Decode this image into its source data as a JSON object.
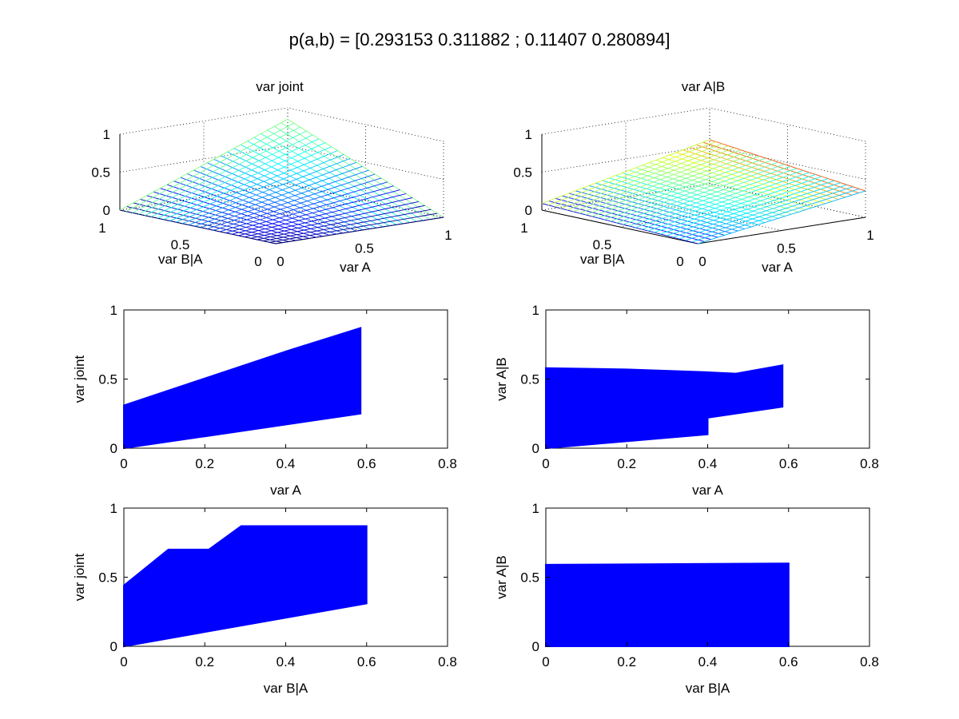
{
  "figure": {
    "title": "p(a,b) = [0.293153 0.311882 ; 0.11407 0.280894]",
    "background": "#ffffff"
  },
  "chart_data": [
    {
      "id": "surf-joint",
      "type": "surface",
      "title": "var joint",
      "xlabel": "var A",
      "ylabel": "var B|A",
      "xticks": [
        "0",
        "0.5",
        "1"
      ],
      "yticks": [
        "0",
        "0.5",
        "1"
      ],
      "zticks": [
        "0",
        "0.5",
        "1"
      ],
      "xlim": [
        0,
        1
      ],
      "ylim": [
        0,
        1
      ],
      "zlim": [
        0,
        1
      ],
      "surface": {
        "min": 0.0,
        "max": 0.85,
        "colormap": "jet",
        "grid": 25
      },
      "grid": true
    },
    {
      "id": "surf-ab",
      "type": "surface",
      "title": "var A|B",
      "xlabel": "var A",
      "ylabel": "var B|A",
      "xticks": [
        "0",
        "0.5",
        "1"
      ],
      "yticks": [
        "0",
        "0.5",
        "1"
      ],
      "zticks": [
        "0",
        "0.5",
        "1"
      ],
      "xlim": [
        0,
        1
      ],
      "ylim": [
        0,
        1
      ],
      "zlim": [
        0,
        1
      ],
      "surface": {
        "min": 0.0,
        "max": 0.58,
        "colormap": "jet",
        "grid": 25
      },
      "grid": true
    },
    {
      "id": "scatter-joint-vs-a",
      "type": "scatter",
      "title": "",
      "xlabel": "var A",
      "ylabel": "var joint",
      "xlim": [
        0,
        0.8
      ],
      "ylim": [
        0,
        1
      ],
      "xticks": [
        "0",
        "0.2",
        "0.4",
        "0.6",
        "0.8"
      ],
      "yticks": [
        "0",
        "0.5",
        "1"
      ],
      "color": "#0000ff",
      "region_upper": [
        [
          0,
          0.31
        ],
        [
          0.4,
          0.7
        ],
        [
          0.585,
          0.87
        ]
      ],
      "region_lower": [
        [
          0,
          0.0
        ],
        [
          0.585,
          0.25
        ]
      ]
    },
    {
      "id": "scatter-ab-vs-a",
      "type": "scatter",
      "title": "",
      "xlabel": "var A",
      "ylabel": "var A|B",
      "xlim": [
        0,
        0.8
      ],
      "ylim": [
        0,
        1
      ],
      "xticks": [
        "0",
        "0.2",
        "0.4",
        "0.6",
        "0.8"
      ],
      "yticks": [
        "0",
        "0.5",
        "1"
      ],
      "color": "#0000ff",
      "region_upper": [
        [
          0,
          0.58
        ],
        [
          0.2,
          0.57
        ],
        [
          0.4,
          0.55
        ],
        [
          0.47,
          0.54
        ],
        [
          0.585,
          0.6
        ]
      ],
      "region_lower": [
        [
          0,
          0.0
        ],
        [
          0.4,
          0.1
        ],
        [
          0.4,
          0.22
        ],
        [
          0.585,
          0.3
        ]
      ]
    },
    {
      "id": "scatter-joint-vs-ba",
      "type": "scatter",
      "title": "",
      "xlabel": "var B|A",
      "ylabel": "var joint",
      "xlim": [
        0,
        0.8
      ],
      "ylim": [
        0,
        1
      ],
      "xticks": [
        "0",
        "0.2",
        "0.4",
        "0.6",
        "0.8"
      ],
      "yticks": [
        "0",
        "0.5",
        "1"
      ],
      "color": "#0000ff",
      "region_upper": [
        [
          0,
          0.44
        ],
        [
          0.11,
          0.7
        ],
        [
          0.21,
          0.7
        ],
        [
          0.29,
          0.87
        ],
        [
          0.6,
          0.87
        ]
      ],
      "region_lower": [
        [
          0,
          0.0
        ],
        [
          0.6,
          0.31
        ]
      ]
    },
    {
      "id": "scatter-ab-vs-ba",
      "type": "scatter",
      "title": "",
      "xlabel": "var B|A",
      "ylabel": "var A|B",
      "xlim": [
        0,
        0.8
      ],
      "ylim": [
        0,
        1
      ],
      "xticks": [
        "0",
        "0.2",
        "0.4",
        "0.6",
        "0.8"
      ],
      "yticks": [
        "0",
        "0.5",
        "1"
      ],
      "color": "#0000ff",
      "region_upper": [
        [
          0,
          0.59
        ],
        [
          0.6,
          0.6
        ]
      ],
      "region_lower": [
        [
          0,
          0.0
        ],
        [
          0.6,
          0.0
        ]
      ]
    }
  ]
}
